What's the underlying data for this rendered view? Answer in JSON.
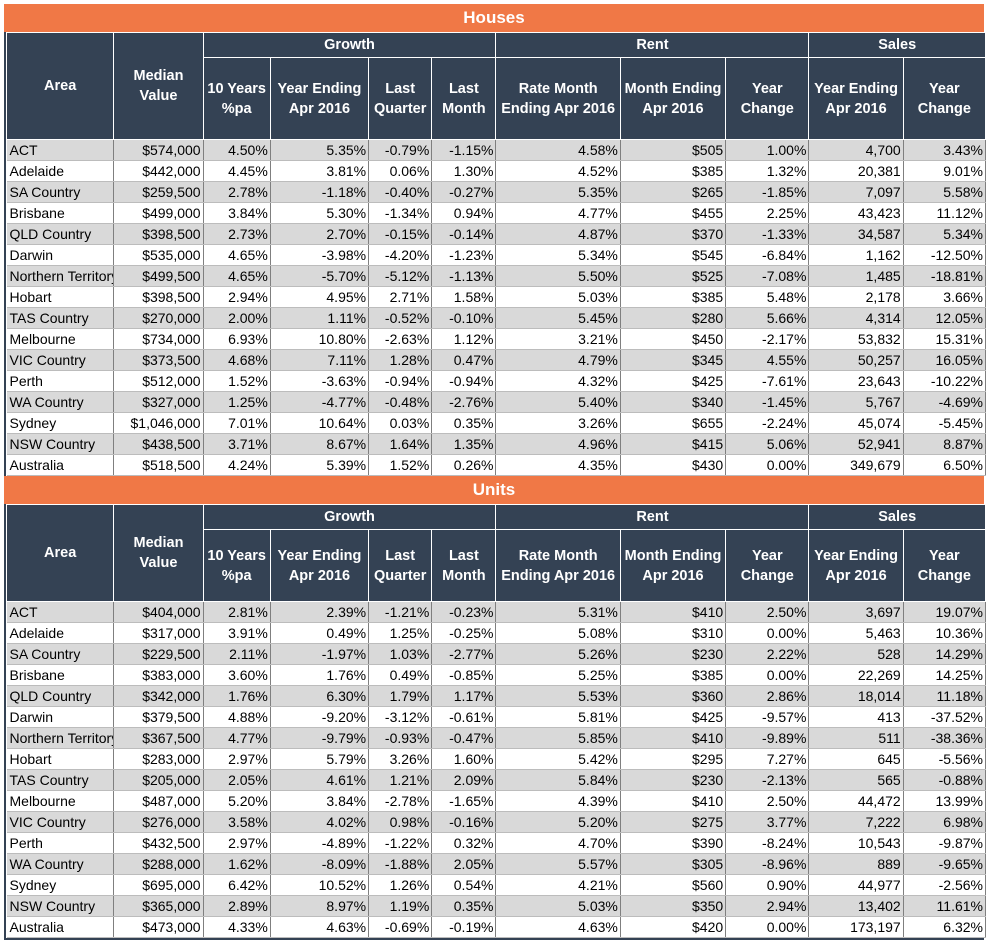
{
  "headers": {
    "area": "Area",
    "median": [
      "Median",
      "Value"
    ],
    "growth": "Growth",
    "rent": "Rent",
    "sales": "Sales",
    "g10": [
      "10 Years",
      "%pa"
    ],
    "gyear": [
      "Year Ending",
      "Apr 2016"
    ],
    "gquarter": [
      "Last",
      "Quarter"
    ],
    "gmonth": [
      "Last",
      "Month"
    ],
    "rrate": [
      "Rate Month",
      "Ending Apr 2016"
    ],
    "rmonth": [
      "Month Ending",
      "Apr 2016"
    ],
    "rchange": [
      "Year",
      "Change"
    ],
    "syear": [
      "Year Ending",
      "Apr 2016"
    ],
    "schange": [
      "Year",
      "Change"
    ]
  },
  "houses": {
    "title": "Houses",
    "rows": [
      [
        "ACT",
        "$574,000",
        "4.50%",
        "5.35%",
        "-0.79%",
        "-1.15%",
        "4.58%",
        "$505",
        "1.00%",
        "4,700",
        "3.43%"
      ],
      [
        "Adelaide",
        "$442,000",
        "4.45%",
        "3.81%",
        "0.06%",
        "1.30%",
        "4.52%",
        "$385",
        "1.32%",
        "20,381",
        "9.01%"
      ],
      [
        "SA Country",
        "$259,500",
        "2.78%",
        "-1.18%",
        "-0.40%",
        "-0.27%",
        "5.35%",
        "$265",
        "-1.85%",
        "7,097",
        "5.58%"
      ],
      [
        "Brisbane",
        "$499,000",
        "3.84%",
        "5.30%",
        "-1.34%",
        "0.94%",
        "4.77%",
        "$455",
        "2.25%",
        "43,423",
        "11.12%"
      ],
      [
        "QLD Country",
        "$398,500",
        "2.73%",
        "2.70%",
        "-0.15%",
        "-0.14%",
        "4.87%",
        "$370",
        "-1.33%",
        "34,587",
        "5.34%"
      ],
      [
        "Darwin",
        "$535,000",
        "4.65%",
        "-3.98%",
        "-4.20%",
        "-1.23%",
        "5.34%",
        "$545",
        "-6.84%",
        "1,162",
        "-12.50%"
      ],
      [
        "Northern Territory",
        "$499,500",
        "4.65%",
        "-5.70%",
        "-5.12%",
        "-1.13%",
        "5.50%",
        "$525",
        "-7.08%",
        "1,485",
        "-18.81%"
      ],
      [
        "Hobart",
        "$398,500",
        "2.94%",
        "4.95%",
        "2.71%",
        "1.58%",
        "5.03%",
        "$385",
        "5.48%",
        "2,178",
        "3.66%"
      ],
      [
        "TAS Country",
        "$270,000",
        "2.00%",
        "1.11%",
        "-0.52%",
        "-0.10%",
        "5.45%",
        "$280",
        "5.66%",
        "4,314",
        "12.05%"
      ],
      [
        "Melbourne",
        "$734,000",
        "6.93%",
        "10.80%",
        "-2.63%",
        "1.12%",
        "3.21%",
        "$450",
        "-2.17%",
        "53,832",
        "15.31%"
      ],
      [
        "VIC Country",
        "$373,500",
        "4.68%",
        "7.11%",
        "1.28%",
        "0.47%",
        "4.79%",
        "$345",
        "4.55%",
        "50,257",
        "16.05%"
      ],
      [
        "Perth",
        "$512,000",
        "1.52%",
        "-3.63%",
        "-0.94%",
        "-0.94%",
        "4.32%",
        "$425",
        "-7.61%",
        "23,643",
        "-10.22%"
      ],
      [
        "WA Country",
        "$327,000",
        "1.25%",
        "-4.77%",
        "-0.48%",
        "-2.76%",
        "5.40%",
        "$340",
        "-1.45%",
        "5,767",
        "-4.69%"
      ],
      [
        "Sydney",
        "$1,046,000",
        "7.01%",
        "10.64%",
        "0.03%",
        "0.35%",
        "3.26%",
        "$655",
        "-2.24%",
        "45,074",
        "-5.45%"
      ],
      [
        "NSW Country",
        "$438,500",
        "3.71%",
        "8.67%",
        "1.64%",
        "1.35%",
        "4.96%",
        "$415",
        "5.06%",
        "52,941",
        "8.87%"
      ],
      [
        "Australia",
        "$518,500",
        "4.24%",
        "5.39%",
        "1.52%",
        "0.26%",
        "4.35%",
        "$430",
        "0.00%",
        "349,679",
        "6.50%"
      ]
    ]
  },
  "units": {
    "title": "Units",
    "rows": [
      [
        "ACT",
        "$404,000",
        "2.81%",
        "2.39%",
        "-1.21%",
        "-0.23%",
        "5.31%",
        "$410",
        "2.50%",
        "3,697",
        "19.07%"
      ],
      [
        "Adelaide",
        "$317,000",
        "3.91%",
        "0.49%",
        "1.25%",
        "-0.25%",
        "5.08%",
        "$310",
        "0.00%",
        "5,463",
        "10.36%"
      ],
      [
        "SA Country",
        "$229,500",
        "2.11%",
        "-1.97%",
        "1.03%",
        "-2.77%",
        "5.26%",
        "$230",
        "2.22%",
        "528",
        "14.29%"
      ],
      [
        "Brisbane",
        "$383,000",
        "3.60%",
        "1.76%",
        "0.49%",
        "-0.85%",
        "5.25%",
        "$385",
        "0.00%",
        "22,269",
        "14.25%"
      ],
      [
        "QLD Country",
        "$342,000",
        "1.76%",
        "6.30%",
        "1.79%",
        "1.17%",
        "5.53%",
        "$360",
        "2.86%",
        "18,014",
        "11.18%"
      ],
      [
        "Darwin",
        "$379,500",
        "4.88%",
        "-9.20%",
        "-3.12%",
        "-0.61%",
        "5.81%",
        "$425",
        "-9.57%",
        "413",
        "-37.52%"
      ],
      [
        "Northern Territory",
        "$367,500",
        "4.77%",
        "-9.79%",
        "-0.93%",
        "-0.47%",
        "5.85%",
        "$410",
        "-9.89%",
        "511",
        "-38.36%"
      ],
      [
        "Hobart",
        "$283,000",
        "2.97%",
        "5.79%",
        "3.26%",
        "1.60%",
        "5.42%",
        "$295",
        "7.27%",
        "645",
        "-5.56%"
      ],
      [
        "TAS Country",
        "$205,000",
        "2.05%",
        "4.61%",
        "1.21%",
        "2.09%",
        "5.84%",
        "$230",
        "-2.13%",
        "565",
        "-0.88%"
      ],
      [
        "Melbourne",
        "$487,000",
        "5.20%",
        "3.84%",
        "-2.78%",
        "-1.65%",
        "4.39%",
        "$410",
        "2.50%",
        "44,472",
        "13.99%"
      ],
      [
        "VIC Country",
        "$276,000",
        "3.58%",
        "4.02%",
        "0.98%",
        "-0.16%",
        "5.20%",
        "$275",
        "3.77%",
        "7,222",
        "6.98%"
      ],
      [
        "Perth",
        "$432,500",
        "2.97%",
        "-4.89%",
        "-1.22%",
        "0.32%",
        "4.70%",
        "$390",
        "-8.24%",
        "10,543",
        "-9.87%"
      ],
      [
        "WA Country",
        "$288,000",
        "1.62%",
        "-8.09%",
        "-1.88%",
        "2.05%",
        "5.57%",
        "$305",
        "-8.96%",
        "889",
        "-9.65%"
      ],
      [
        "Sydney",
        "$695,000",
        "6.42%",
        "10.52%",
        "1.26%",
        "0.54%",
        "4.21%",
        "$560",
        "0.90%",
        "44,977",
        "-2.56%"
      ],
      [
        "NSW Country",
        "$365,000",
        "2.89%",
        "8.97%",
        "1.19%",
        "0.35%",
        "5.03%",
        "$350",
        "2.94%",
        "13,402",
        "11.61%"
      ],
      [
        "Australia",
        "$473,000",
        "4.33%",
        "4.63%",
        "-0.69%",
        "-0.19%",
        "4.63%",
        "$420",
        "0.00%",
        "173,197",
        "6.32%"
      ]
    ]
  }
}
